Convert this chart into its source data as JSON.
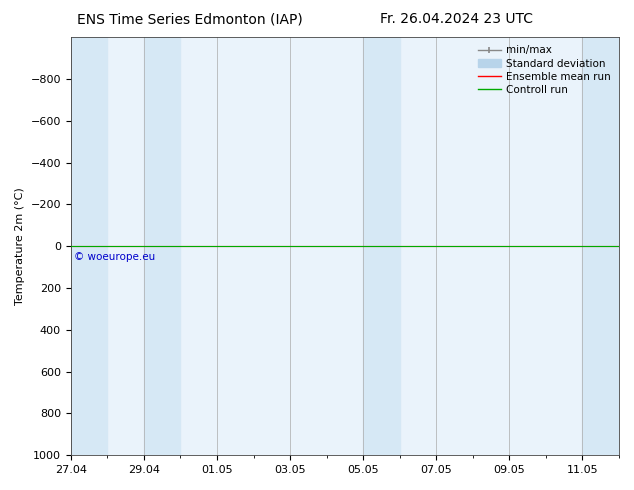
{
  "title_left": "ENS Time Series Edmonton (IAP)",
  "title_right": "Fr. 26.04.2024 23 UTC",
  "ylabel": "Temperature 2m (°C)",
  "ylim_min": -1000,
  "ylim_max": 1000,
  "yticks": [
    -800,
    -600,
    -400,
    -200,
    0,
    200,
    400,
    600,
    800,
    1000
  ],
  "x_ticks_labels": [
    "27.04",
    "29.04",
    "01.05",
    "03.05",
    "05.05",
    "07.05",
    "09.05",
    "11.05"
  ],
  "shade_color": "#d6e8f5",
  "bg_color": "#eaf3fb",
  "ensemble_mean_color": "#ff0000",
  "control_run_color": "#00aa00",
  "minmax_color": "#888888",
  "stddev_color": "#b8d4ea",
  "watermark_text": "© woeurope.eu",
  "watermark_color": "#0000cc",
  "background_color": "#ffffff",
  "title_fontsize": 10,
  "axis_fontsize": 8,
  "tick_fontsize": 8,
  "legend_fontsize": 7.5
}
